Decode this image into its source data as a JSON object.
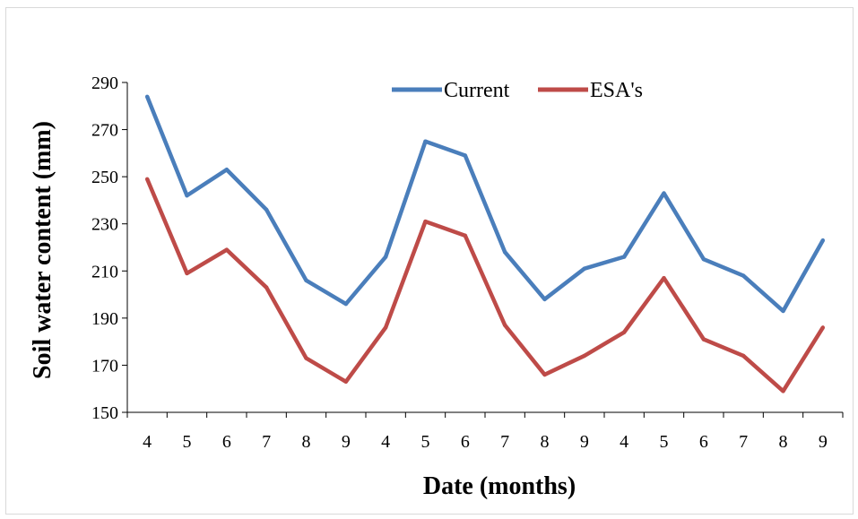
{
  "chart_data": {
    "type": "line",
    "categories": [
      "4",
      "5",
      "6",
      "7",
      "8",
      "9",
      "4",
      "5",
      "6",
      "7",
      "8",
      "9",
      "4",
      "5",
      "6",
      "7",
      "8",
      "9"
    ],
    "series": [
      {
        "name": "Current",
        "color": "#4a7ebb",
        "values": [
          284,
          242,
          253,
          236,
          206,
          196,
          216,
          265,
          259,
          218,
          198,
          211,
          216,
          243,
          215,
          208,
          193,
          223
        ]
      },
      {
        "name": "ESA's",
        "color": "#be4b48",
        "values": [
          249,
          209,
          219,
          203,
          173,
          163,
          186,
          231,
          225,
          187,
          166,
          174,
          184,
          207,
          181,
          174,
          159,
          186
        ]
      }
    ],
    "xlabel": "Date (months)",
    "ylabel": "Soil water content (mm)",
    "ylim": [
      150,
      290
    ],
    "yticks": [
      "150",
      "170",
      "190",
      "210",
      "230",
      "250",
      "270",
      "290"
    ],
    "grid": false,
    "legend": "top-center"
  }
}
